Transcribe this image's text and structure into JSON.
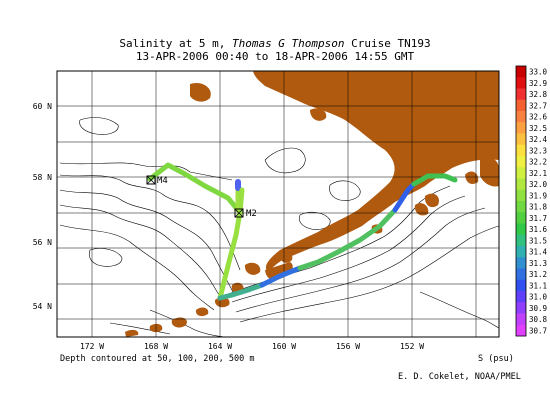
{
  "title": {
    "line1_pre": "Salinity at 5 m, ",
    "line1_ship": "Thomas G  Thompson",
    "line1_post": " Cruise TN193",
    "line2": "13-APR-2006 00:40 to 18-APR-2006 14:55 GMT"
  },
  "axes": {
    "lon_labels": [
      "172 W",
      "168 W",
      "164 W",
      "160 W",
      "156 W",
      "152 W"
    ],
    "lat_labels": [
      "60 N",
      "58 N",
      "56 N",
      "54 N"
    ]
  },
  "stations": [
    {
      "label": "M4"
    },
    {
      "label": "M2"
    }
  ],
  "colorbar": {
    "unit_label": "S (psu)",
    "ticks": [
      "33.0",
      "32.9",
      "32.8",
      "32.7",
      "32.6",
      "32.5",
      "32.4",
      "32.3",
      "32.2",
      "32.1",
      "32.0",
      "31.9",
      "31.8",
      "31.7",
      "31.6",
      "31.5",
      "31.4",
      "31.3",
      "31.2",
      "31.1",
      "31.0",
      "30.9",
      "30.8",
      "30.7"
    ],
    "colors": [
      "#c80000",
      "#e01010",
      "#f03030",
      "#f46030",
      "#f88040",
      "#fca040",
      "#fcc040",
      "#fce040",
      "#f0f040",
      "#d0f040",
      "#b0e840",
      "#90e040",
      "#70d840",
      "#50d040",
      "#30c848",
      "#30c080",
      "#30b0b0",
      "#3090d0",
      "#3070e0",
      "#3050f0",
      "#6040f8",
      "#9040fc",
      "#c040fc",
      "#e040fc"
    ]
  },
  "footer": {
    "depth_note": "Depth contoured at 50, 100, 200, 500 m",
    "credit": "E. D. Cokelet, NOAA/PMEL"
  },
  "colors": {
    "land": "#b05a10",
    "grid": "#000000"
  }
}
